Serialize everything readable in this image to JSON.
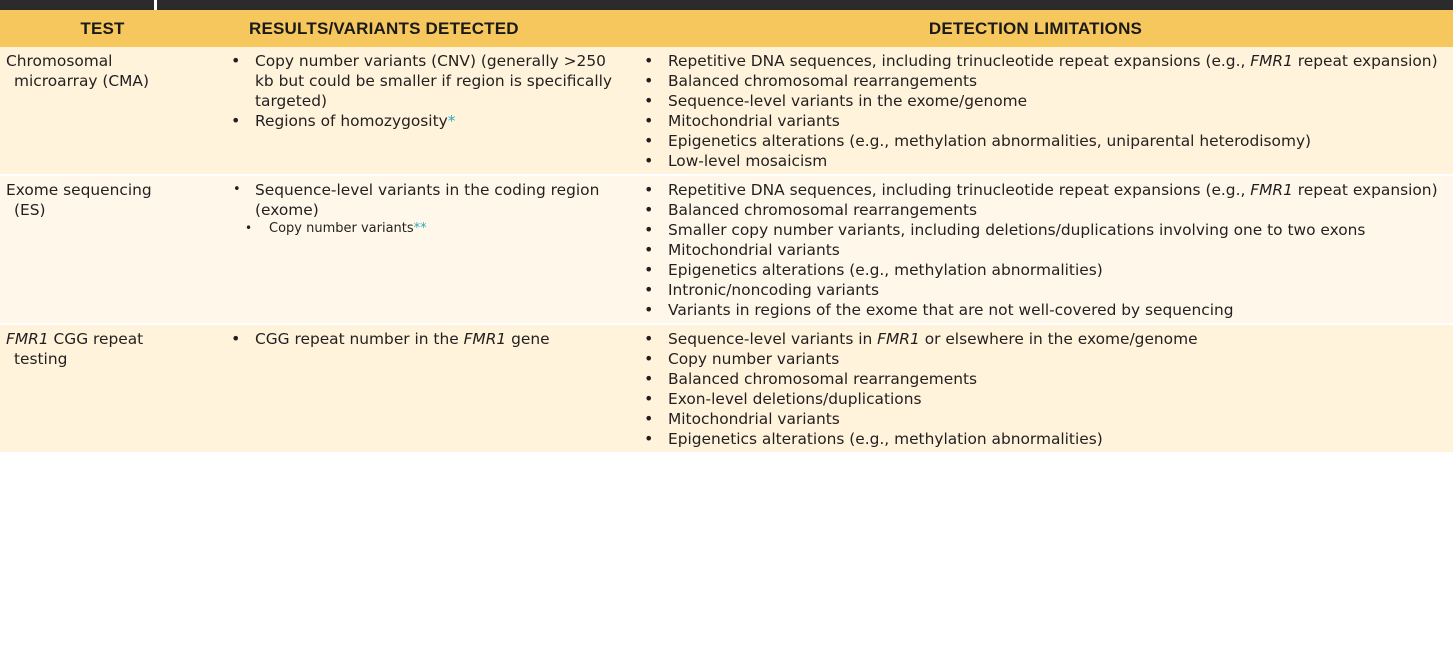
{
  "header": {
    "test": "TEST",
    "results": "RESULTS/VARIANTS DETECTED",
    "limitations": "DETECTION LIMITATIONS"
  },
  "rows": [
    {
      "test_line1": [
        {
          "text": "Chromosomal"
        }
      ],
      "test_line2": [
        {
          "text": "microarray (CMA)"
        }
      ],
      "results": [
        {
          "small": false,
          "segments": [
            {
              "text": "Copy number variants (CNV) (generally >250 kb but could be smaller if region is specifically targeted)"
            }
          ]
        },
        {
          "small": false,
          "segments": [
            {
              "text": "Regions of homozygosity"
            }
          ],
          "footnote": "*"
        }
      ],
      "limitations": [
        [
          {
            "text": "Repetitive DNA sequences, including trinucleotide repeat expansions (e.g., "
          },
          {
            "text": "FMR1",
            "i": true
          },
          {
            "text": " repeat expansion)"
          }
        ],
        [
          {
            "text": "Balanced chromosomal rearrangements"
          }
        ],
        [
          {
            "text": "Sequence-level variants in the exome/genome"
          }
        ],
        [
          {
            "text": "Mitochondrial variants"
          }
        ],
        [
          {
            "text": "Epigenetics alterations (e.g., methylation abnormalities, uniparental heterodisomy)"
          }
        ],
        [
          {
            "text": "Low-level mosaicism"
          }
        ]
      ]
    },
    {
      "test_line1": [
        {
          "text": "Exome sequencing"
        }
      ],
      "test_line2": [
        {
          "text": "(ES)"
        }
      ],
      "results": [
        {
          "small": false,
          "open_dot": true,
          "segments": [
            {
              "text": "Sequence-level variants in the coding region (exome)"
            }
          ]
        },
        {
          "small": true,
          "segments": [
            {
              "text": "Copy number variants"
            }
          ],
          "footnote": "**"
        }
      ],
      "limitations": [
        [
          {
            "text": "Repetitive DNA sequences, including trinucleotide repeat expansions (e.g., "
          },
          {
            "text": "FMR1",
            "i": true
          },
          {
            "text": " repeat expansion)"
          }
        ],
        [
          {
            "text": "Balanced chromosomal rearrangements"
          }
        ],
        [
          {
            "text": "Smaller copy number variants, including deletions/duplications involving one to two exons"
          }
        ],
        [
          {
            "text": "Mitochondrial variants"
          }
        ],
        [
          {
            "text": "Epigenetics alterations (e.g., methylation abnormalities)"
          }
        ],
        [
          {
            "text": "Intronic/noncoding variants"
          }
        ],
        [
          {
            "text": "Variants in regions of the exome that are not well-covered by sequencing"
          }
        ]
      ]
    },
    {
      "test_line1": [
        {
          "text": "FMR1",
          "i": true
        },
        {
          "text": " CGG repeat"
        }
      ],
      "test_line2": [
        {
          "text": "testing"
        }
      ],
      "results": [
        {
          "small": false,
          "segments": [
            {
              "text": "CGG repeat number in the "
            },
            {
              "text": "FMR1",
              "i": true
            },
            {
              "text": " gene"
            }
          ]
        }
      ],
      "limitations": [
        [
          {
            "text": "Sequence-level variants in "
          },
          {
            "text": "FMR1",
            "i": true
          },
          {
            "text": " or elsewhere in the exome/genome"
          }
        ],
        [
          {
            "text": "Copy number variants"
          }
        ],
        [
          {
            "text": "Balanced chromosomal rearrangements"
          }
        ],
        [
          {
            "text": "Exon-level deletions/duplications"
          }
        ],
        [
          {
            "text": "Mitochondrial variants"
          }
        ],
        [
          {
            "text": "Epigenetics alterations (e.g., methylation abnormalities)"
          }
        ]
      ]
    }
  ],
  "colors": {
    "header_bg": "#f6c75c",
    "row_bg_odd": "#fff3dc",
    "row_bg_even": "#fff8ea",
    "footnote": "#2fa9b8",
    "top_strip": "#2b2b2b"
  }
}
